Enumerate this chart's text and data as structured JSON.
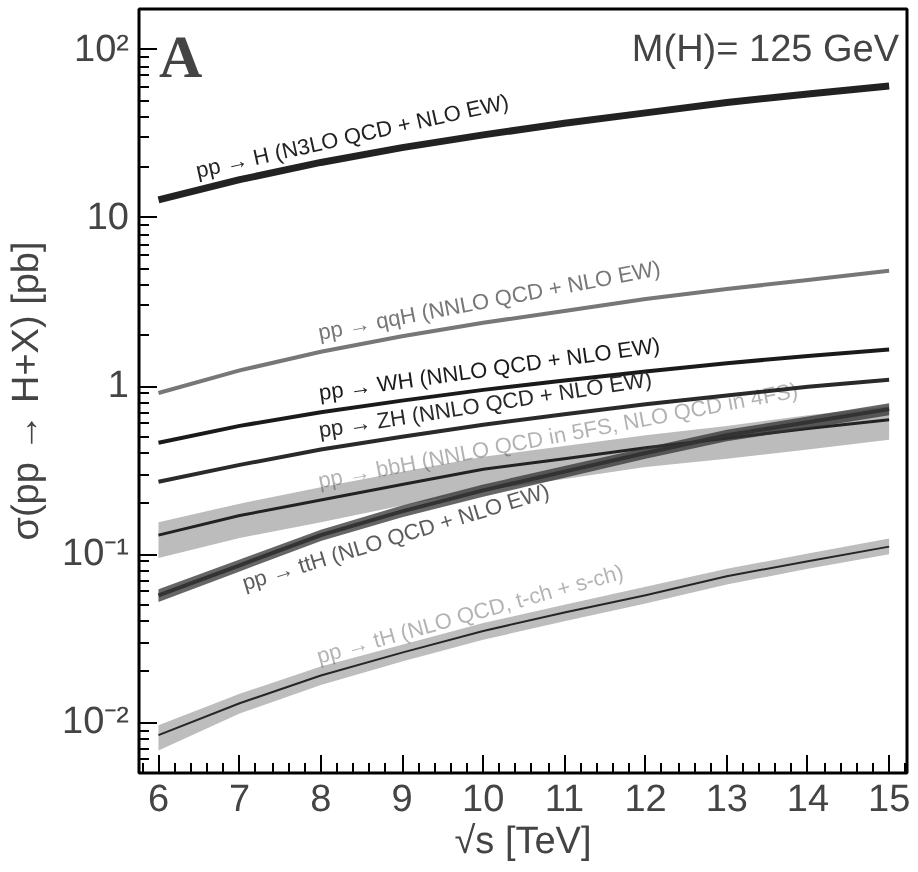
{
  "chart_data": {
    "type": "line",
    "xlabel": "√s [TeV]",
    "ylabel": "σ(pp → H+X) [pb]",
    "annotations": [
      "A",
      "M(H)= 125 GeV"
    ],
    "x": [
      6,
      7,
      8,
      9,
      10,
      11,
      12,
      13,
      14,
      15
    ],
    "series": [
      {
        "name": "pp → H (N3LO QCD + NLO EW)",
        "color": "#222222",
        "values": [
          12.8,
          16.9,
          21.4,
          26.2,
          31.2,
          36.6,
          42.2,
          48.6,
          54.7,
          61
        ]
      },
      {
        "name": "pp → qqH (NNLO QCD + NLO EW)",
        "color": "#777777",
        "values": [
          0.91,
          1.24,
          1.6,
          1.98,
          2.38,
          2.8,
          3.3,
          3.78,
          4.28,
          4.85
        ]
      },
      {
        "name": "pp → WH (NNLO QCD + NLO EW)",
        "color": "#1a1a1a",
        "values": [
          0.46,
          0.58,
          0.7,
          0.82,
          0.95,
          1.08,
          1.22,
          1.37,
          1.51,
          1.65
        ]
      },
      {
        "name": "pp → ZH (NNLO QCD + NLO EW)",
        "color": "#2a2a2a",
        "values": [
          0.27,
          0.34,
          0.42,
          0.5,
          0.59,
          0.68,
          0.78,
          0.88,
          0.99,
          1.09
        ]
      },
      {
        "name": "pp → bbH (NNLO QCD in 5FS, NLO QCD in 4FS)",
        "color": "#222222",
        "values": [
          0.13,
          0.17,
          0.21,
          0.26,
          0.32,
          0.37,
          0.43,
          0.49,
          0.56,
          0.63
        ],
        "lower": [
          0.095,
          0.125,
          0.155,
          0.195,
          0.24,
          0.28,
          0.33,
          0.37,
          0.42,
          0.48
        ],
        "upper": [
          0.155,
          0.2,
          0.25,
          0.31,
          0.38,
          0.44,
          0.51,
          0.58,
          0.67,
          0.76
        ]
      },
      {
        "name": "pp → ttH (NLO QCD + NLO EW)",
        "color": "#333333",
        "values": [
          0.057,
          0.086,
          0.13,
          0.18,
          0.24,
          0.31,
          0.4,
          0.51,
          0.61,
          0.73
        ],
        "lower": [
          0.052,
          0.079,
          0.12,
          0.166,
          0.22,
          0.285,
          0.37,
          0.47,
          0.56,
          0.67
        ],
        "upper": [
          0.062,
          0.093,
          0.14,
          0.195,
          0.26,
          0.335,
          0.43,
          0.55,
          0.66,
          0.79
        ]
      },
      {
        "name": "pp → tH (NLO QCD, t-ch + s-ch)",
        "color": "#262626",
        "values": [
          0.0084,
          0.013,
          0.019,
          0.026,
          0.035,
          0.045,
          0.057,
          0.074,
          0.091,
          0.111
        ],
        "lower": [
          0.0068,
          0.0113,
          0.0167,
          0.023,
          0.031,
          0.04,
          0.051,
          0.066,
          0.082,
          0.1
        ],
        "upper": [
          0.0096,
          0.0148,
          0.0215,
          0.029,
          0.039,
          0.05,
          0.064,
          0.082,
          0.101,
          0.124
        ]
      }
    ],
    "xlim": [
      5.76,
      15.22
    ],
    "ylim": [
      0.005,
      175
    ],
    "xticks": [
      6,
      7,
      8,
      9,
      10,
      11,
      12,
      13,
      14,
      15
    ],
    "yticks": [
      {
        "value": 0.01,
        "label": "10⁻²"
      },
      {
        "value": 0.1,
        "label": "10⁻¹"
      },
      1,
      10,
      {
        "value": 100,
        "label": "10²"
      }
    ],
    "log": "y",
    "grid": false,
    "marker": "none",
    "line_style": "solid"
  }
}
